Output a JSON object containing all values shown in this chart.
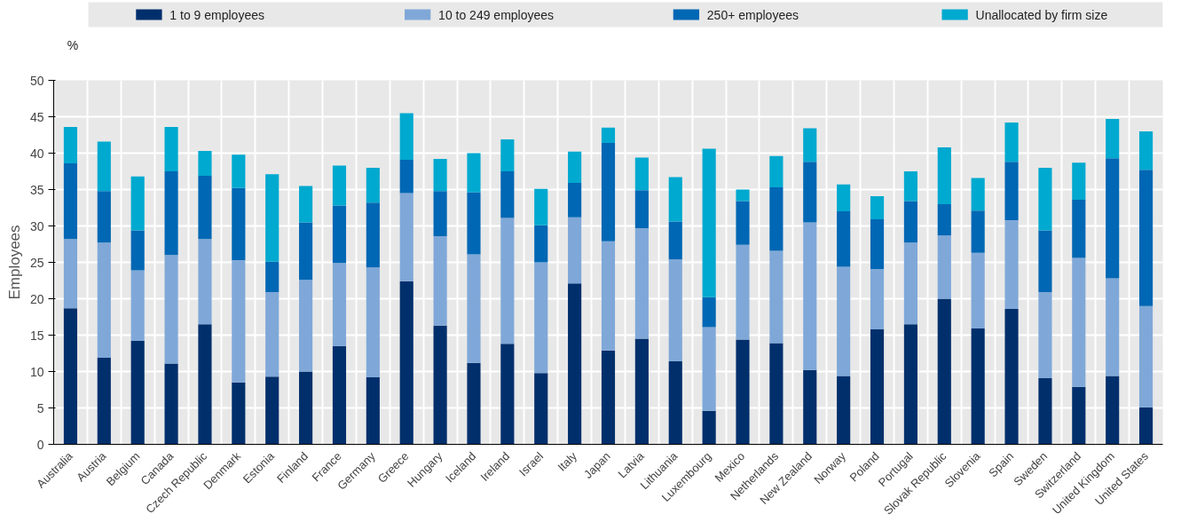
{
  "chart_data": {
    "type": "bar",
    "stacked": true,
    "ylabel": "Employees",
    "annotations": [
      "%"
    ],
    "categories": [
      "Australia",
      "Austria",
      "Belgium",
      "Canada",
      "Czech Republic",
      "Denmark",
      "Estonia",
      "Finland",
      "France",
      "Germany",
      "Greece",
      "Hungary",
      "Iceland",
      "Ireland",
      "Israel",
      "Italy",
      "Japan",
      "Latvia",
      "Lithuania",
      "Luxembourg",
      "Mexico",
      "Netherlands",
      "New Zealand",
      "Norway",
      "Poland",
      "Portugal",
      "Slovak Republic",
      "Slovenia",
      "Spain",
      "Sweden",
      "Switzerland",
      "United Kingdom",
      "United States"
    ],
    "series": [
      {
        "name": "1 to 9 employees",
        "color": "#002f6c",
        "values": [
          18.7,
          11.9,
          14.2,
          11.1,
          16.5,
          8.5,
          9.3,
          10.0,
          13.5,
          9.2,
          22.4,
          16.3,
          11.2,
          13.8,
          9.8,
          22.1,
          12.9,
          14.5,
          11.4,
          4.6,
          14.4,
          13.9,
          10.2,
          9.4,
          15.8,
          16.5,
          20.0,
          15.9,
          18.6,
          9.1,
          7.9,
          9.4,
          5.1
        ]
      },
      {
        "name": "10 to 249 employees",
        "color": "#7fa8d8",
        "values": [
          9.5,
          15.8,
          9.7,
          14.9,
          11.7,
          16.8,
          11.6,
          12.6,
          11.4,
          15.1,
          12.1,
          12.3,
          14.9,
          17.3,
          15.2,
          9.1,
          15.0,
          15.2,
          14.0,
          11.5,
          13.0,
          12.7,
          20.3,
          15.0,
          8.3,
          11.2,
          8.7,
          10.4,
          12.2,
          11.8,
          17.7,
          13.4,
          13.9
        ]
      },
      {
        "name": "250+ employees",
        "color": "#0067b4",
        "values": [
          10.4,
          7.1,
          5.5,
          11.5,
          8.7,
          9.9,
          4.2,
          7.9,
          7.9,
          8.9,
          4.6,
          6.2,
          8.5,
          6.4,
          5.1,
          4.7,
          13.5,
          5.2,
          5.2,
          4.1,
          6.0,
          8.7,
          8.3,
          7.6,
          6.8,
          5.7,
          4.3,
          5.8,
          8.0,
          8.5,
          8.0,
          16.5,
          18.7
        ]
      },
      {
        "name": "Unallocated by firm size",
        "color": "#00a9cf",
        "values": [
          5.0,
          6.8,
          7.4,
          6.1,
          3.4,
          4.6,
          12.0,
          5.0,
          5.5,
          4.8,
          6.4,
          4.4,
          5.4,
          4.4,
          5.0,
          4.3,
          2.1,
          4.5,
          6.1,
          20.4,
          1.6,
          4.3,
          4.6,
          3.7,
          3.2,
          4.1,
          7.8,
          4.5,
          5.4,
          8.6,
          5.1,
          5.4,
          5.3
        ]
      }
    ],
    "ylim": [
      0,
      50
    ],
    "yticks": [
      0,
      5,
      10,
      15,
      20,
      25,
      30,
      35,
      40,
      45,
      50
    ],
    "grid": true,
    "legend": "top"
  }
}
